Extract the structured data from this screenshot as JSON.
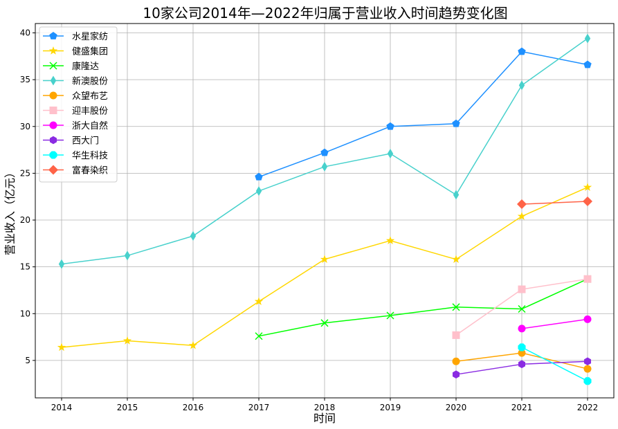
{
  "chart_data": {
    "type": "line",
    "title": "10家公司2014年—2022年归属于营业收入时间趋势变化图",
    "xlabel": "时间",
    "ylabel": "营业收入（亿元）",
    "x": [
      2014,
      2015,
      2016,
      2017,
      2018,
      2019,
      2020,
      2021,
      2022
    ],
    "xlim": [
      2013.6,
      2022.4
    ],
    "ylim": [
      1,
      41
    ],
    "yticks": [
      5,
      10,
      15,
      20,
      25,
      30,
      35,
      40
    ],
    "grid": true,
    "legend_position": "upper-left",
    "series": [
      {
        "name": "水星家纺",
        "color": "#1e90ff",
        "marker": "pentagon",
        "values": [
          null,
          null,
          null,
          24.6,
          27.2,
          30.0,
          30.3,
          38.0,
          36.6
        ]
      },
      {
        "name": "健盛集团",
        "color": "#ffd700",
        "marker": "star",
        "values": [
          6.4,
          7.1,
          6.6,
          11.3,
          15.8,
          17.8,
          15.8,
          20.4,
          23.5
        ]
      },
      {
        "name": "康隆达",
        "color": "#00ff00",
        "marker": "x",
        "values": [
          null,
          null,
          null,
          7.6,
          9.0,
          9.8,
          10.7,
          10.5,
          13.7
        ]
      },
      {
        "name": "新澳股份",
        "color": "#48d1cc",
        "marker": "thin-diamond",
        "values": [
          15.3,
          16.2,
          18.3,
          23.1,
          25.7,
          27.1,
          22.7,
          34.4,
          39.4
        ]
      },
      {
        "name": "众望布艺",
        "color": "#ffa500",
        "marker": "circle",
        "values": [
          null,
          null,
          null,
          null,
          null,
          null,
          4.9,
          5.8,
          4.1
        ]
      },
      {
        "name": "迎丰股份",
        "color": "#ffc0cb",
        "marker": "square",
        "values": [
          null,
          null,
          null,
          null,
          null,
          null,
          7.7,
          12.6,
          13.7
        ]
      },
      {
        "name": "浙大自然",
        "color": "#ff00ff",
        "marker": "circle",
        "values": [
          null,
          null,
          null,
          null,
          null,
          null,
          null,
          8.4,
          9.4
        ]
      },
      {
        "name": "西大门",
        "color": "#8a2be2",
        "marker": "hexagon",
        "values": [
          null,
          null,
          null,
          null,
          null,
          null,
          3.5,
          4.6,
          4.9
        ]
      },
      {
        "name": "华生科技",
        "color": "#00ffff",
        "marker": "octagon",
        "values": [
          null,
          null,
          null,
          null,
          null,
          null,
          null,
          6.4,
          2.8
        ]
      },
      {
        "name": "富春染织",
        "color": "#ff6347",
        "marker": "diamond",
        "values": [
          null,
          null,
          null,
          null,
          null,
          null,
          null,
          21.7,
          22.0
        ]
      }
    ]
  }
}
